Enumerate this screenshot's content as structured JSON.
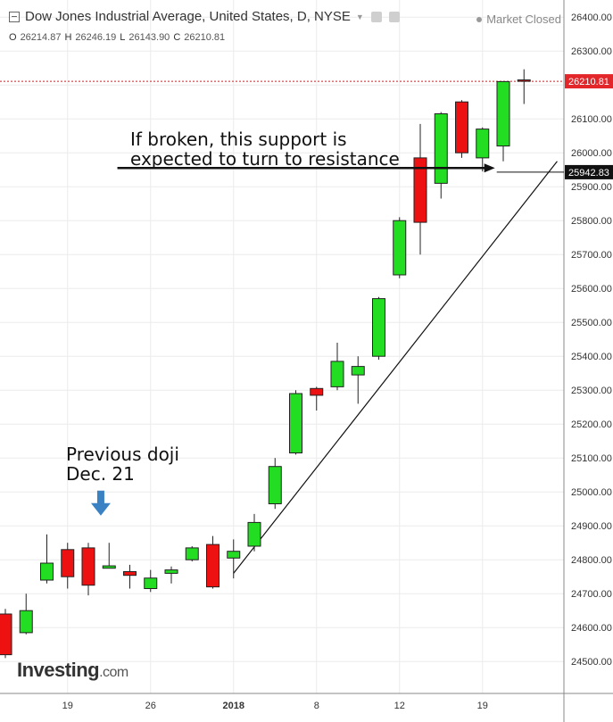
{
  "header": {
    "title": "Dow Jones Industrial Average, United States, D, NYSE",
    "status": "Market Closed",
    "ohlc": [
      {
        "key": "O",
        "value": "26214.87"
      },
      {
        "key": "H",
        "value": "26246.19"
      },
      {
        "key": "L",
        "value": "26143.90"
      },
      {
        "key": "C",
        "value": "26210.81"
      }
    ]
  },
  "logo": {
    "brand": "Investing",
    "suffix": ".com"
  },
  "annotations": {
    "doji_line1": "Previous doji",
    "doji_line2": "Dec. 21",
    "support_line1": "If broken, this support is",
    "support_line2": "expected to turn to resistance"
  },
  "colors": {
    "up": "#22dd22",
    "down": "#ee1111",
    "arrow": "#3a82c4",
    "price_line": "#cc2222"
  },
  "chart_data": {
    "type": "candlestick",
    "y_ticks": [
      24500,
      24600,
      24700,
      24800,
      24900,
      25000,
      25100,
      25200,
      25300,
      25400,
      25500,
      25600,
      25700,
      25800,
      25900,
      26000,
      26100,
      26200,
      26300,
      26400
    ],
    "ylim": [
      24400,
      26450
    ],
    "x_ticks": [
      {
        "label": "19",
        "index": 3
      },
      {
        "label": "26",
        "index": 7
      },
      {
        "label": "2018",
        "index": 11
      },
      {
        "label": "8",
        "index": 15
      },
      {
        "label": "12",
        "index": 19
      },
      {
        "label": "19",
        "index": 23
      }
    ],
    "candles": [
      {
        "o": 24640,
        "h": 24655,
        "l": 24510,
        "c": 24520
      },
      {
        "o": 24585,
        "h": 24700,
        "l": 24580,
        "c": 24650
      },
      {
        "o": 24740,
        "h": 24875,
        "l": 24730,
        "c": 24790
      },
      {
        "o": 24830,
        "h": 24850,
        "l": 24715,
        "c": 24750
      },
      {
        "o": 24835,
        "h": 24850,
        "l": 24695,
        "c": 24725
      },
      {
        "o": 24775,
        "h": 24850,
        "l": 24775,
        "c": 24782
      },
      {
        "o": 24765,
        "h": 24785,
        "l": 24715,
        "c": 24754
      },
      {
        "o": 24715,
        "h": 24770,
        "l": 24705,
        "c": 24746
      },
      {
        "o": 24760,
        "h": 24780,
        "l": 24730,
        "c": 24770
      },
      {
        "o": 24800,
        "h": 24840,
        "l": 24795,
        "c": 24835
      },
      {
        "o": 24845,
        "h": 24870,
        "l": 24715,
        "c": 24720
      },
      {
        "o": 24805,
        "h": 24860,
        "l": 24745,
        "c": 24825
      },
      {
        "o": 24840,
        "h": 24935,
        "l": 24825,
        "c": 24910
      },
      {
        "o": 24965,
        "h": 25100,
        "l": 24950,
        "c": 25075
      },
      {
        "o": 25115,
        "h": 25300,
        "l": 25110,
        "c": 25290
      },
      {
        "o": 25305,
        "h": 25310,
        "l": 25240,
        "c": 25285
      },
      {
        "o": 25310,
        "h": 25440,
        "l": 25300,
        "c": 25385
      },
      {
        "o": 25345,
        "h": 25400,
        "l": 25260,
        "c": 25370
      },
      {
        "o": 25400,
        "h": 25575,
        "l": 25390,
        "c": 25570
      },
      {
        "o": 25640,
        "h": 25810,
        "l": 25630,
        "c": 25800
      },
      {
        "o": 25985,
        "h": 26085,
        "l": 25700,
        "c": 25795
      },
      {
        "o": 25910,
        "h": 26120,
        "l": 25865,
        "c": 26115
      },
      {
        "o": 26150,
        "h": 26155,
        "l": 25985,
        "c": 26000
      },
      {
        "o": 25985,
        "h": 26075,
        "l": 25945,
        "c": 26070
      },
      {
        "o": 26020,
        "h": 26210,
        "l": 25975,
        "c": 26210
      },
      {
        "o": 26214.87,
        "h": 26246.19,
        "l": 26143.9,
        "c": 26210.81
      }
    ],
    "current_price": 26210.81,
    "current_price_label": "26210.81",
    "support_level": 25942.83,
    "support_label": "25942.83",
    "trendline": {
      "from": {
        "index": 11,
        "price": 24760
      },
      "to": {
        "index": 26.6,
        "price": 25975
      }
    },
    "support_arrow": {
      "from_index": 5.4,
      "to_index": 23.6,
      "price": 25955
    },
    "doji_marker": {
      "index": 4.6,
      "price": 24930
    }
  }
}
